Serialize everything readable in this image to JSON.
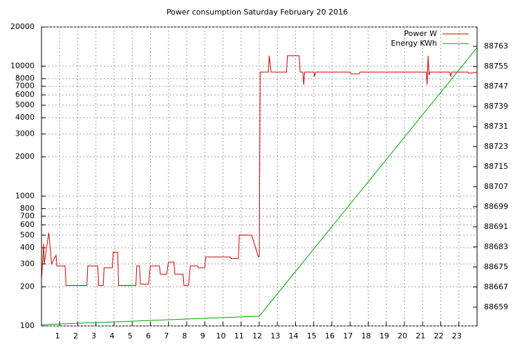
{
  "chart_data": {
    "type": "line",
    "title": "Power consumption Saturday February 20 2016",
    "xlim": [
      0,
      24
    ],
    "xticks": [
      1,
      2,
      3,
      4,
      5,
      6,
      7,
      8,
      9,
      10,
      11,
      12,
      13,
      14,
      15,
      16,
      17,
      18,
      19,
      20,
      21,
      22,
      23
    ],
    "ylim": [
      100,
      20000
    ],
    "log_scale": true,
    "yticks": [
      100,
      200,
      300,
      400,
      500,
      600,
      700,
      800,
      1000,
      2000,
      3000,
      4000,
      5000,
      6000,
      7000,
      8000,
      10000,
      20000
    ],
    "y2lim": [
      88651.5,
      88770.7
    ],
    "y2ticks": [
      88659,
      88667,
      88675,
      88683,
      88691,
      88699,
      88707,
      88715,
      88723,
      88731,
      88739,
      88747,
      88755,
      88763
    ],
    "grid": true,
    "legend": "top-right",
    "series": [
      {
        "name": "Power W",
        "color": "#cc0000",
        "x": [
          0,
          0.12,
          0.15,
          0.4,
          0.5,
          0.55,
          0.8,
          0.85,
          1.3,
          1.35,
          2.5,
          2.55,
          3.1,
          3.15,
          3.4,
          3.45,
          3.9,
          3.95,
          4.2,
          4.25,
          5.2,
          5.25,
          5.4,
          5.45,
          5.9,
          6.0,
          6.5,
          6.55,
          6.9,
          7.0,
          7.3,
          7.35,
          7.8,
          7.85,
          8.1,
          8.2,
          8.6,
          8.65,
          9.0,
          9.05,
          9.4,
          9.45,
          10.4,
          10.45,
          10.85,
          10.9,
          11.55,
          11.6,
          11.95,
          12.0,
          12.05,
          12.5,
          12.55,
          12.65,
          12.7,
          13.5,
          13.55,
          14.2,
          14.25,
          14.4,
          14.45,
          14.5,
          15.0,
          15.05,
          15.1,
          17.0,
          17.05,
          17.5,
          17.55,
          21.2,
          21.25,
          21.3,
          21.35,
          21.4,
          22.5,
          22.55,
          22.6,
          23.5,
          23.55,
          24
        ],
        "values": [
          220,
          430,
          300,
          520,
          380,
          300,
          350,
          290,
          290,
          205,
          205,
          290,
          290,
          205,
          205,
          280,
          280,
          370,
          370,
          205,
          205,
          290,
          290,
          210,
          210,
          290,
          290,
          250,
          250,
          310,
          310,
          250,
          250,
          205,
          205,
          290,
          290,
          280,
          280,
          340,
          340,
          340,
          340,
          330,
          330,
          500,
          500,
          490,
          340,
          340,
          9000,
          9000,
          12000,
          9000,
          9000,
          9000,
          12000,
          12000,
          9000,
          9000,
          7200,
          9000,
          9000,
          8300,
          9000,
          9000,
          8700,
          8700,
          9000,
          9000,
          7200,
          12000,
          8500,
          9000,
          9000,
          8300,
          9000,
          9000,
          8800,
          9000
        ]
      },
      {
        "name": "Energy KWh",
        "color": "#00a000",
        "axis": "y2",
        "x": [
          0,
          12,
          24
        ],
        "values": [
          88652,
          88655.4,
          88762.5
        ]
      }
    ]
  }
}
